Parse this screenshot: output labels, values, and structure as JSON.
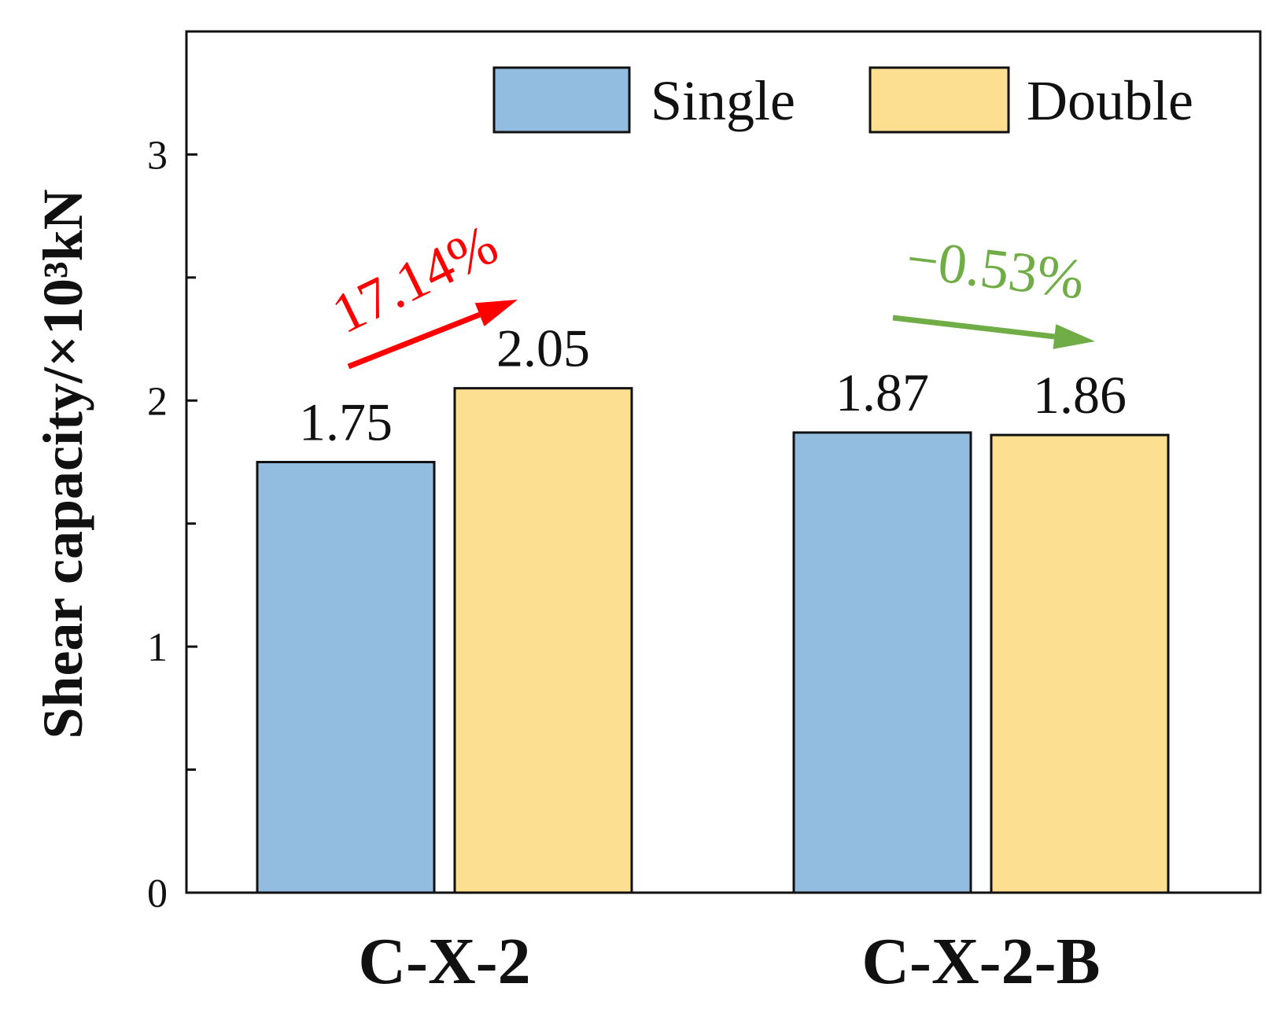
{
  "chart_data": {
    "type": "bar",
    "title": "",
    "xlabel": "",
    "ylabel": "Shear capacity/×10³kN",
    "categories": [
      "C-X-2",
      "C-X-2-B"
    ],
    "series": [
      {
        "name": "Single",
        "color": "#93bde0",
        "values": [
          1.75,
          1.87
        ]
      },
      {
        "name": "Double",
        "color": "#fddf92",
        "values": [
          2.05,
          1.86
        ]
      }
    ],
    "data_labels": [
      [
        "1.75",
        "2.05"
      ],
      [
        "1.87",
        "1.86"
      ]
    ],
    "ylim": [
      0,
      3.5
    ],
    "yticks": [
      0,
      1,
      2,
      3
    ],
    "minor_yticks": [
      0.5,
      1.5,
      2.5
    ],
    "grid": false,
    "legend": {
      "placement": "top-right",
      "entries": [
        "Single",
        "Double"
      ]
    },
    "annotations": [
      {
        "text": "17.14%",
        "color": "#ff0000",
        "category": "C-X-2",
        "from_value": 1.75,
        "to_value": 2.05
      },
      {
        "text": "−0.53%",
        "color": "#70ad47",
        "category": "C-X-2-B",
        "from_value": 1.87,
        "to_value": 1.86
      }
    ]
  }
}
